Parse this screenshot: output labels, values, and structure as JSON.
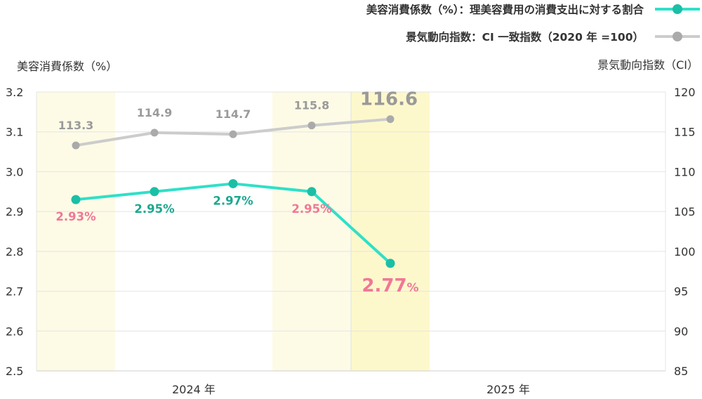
{
  "chart_data": {
    "type": "line",
    "legend": [
      {
        "name": "美容消費係数（%）：理美容費用の消費支出に対する割合",
        "color": "#2fe0c8",
        "marker": "#1bbfa5"
      },
      {
        "name": "景気動向指数：CI 一致指数（2020 年 =100）",
        "color": "#cccccc",
        "marker": "#aaaaaa"
      }
    ],
    "legend_placement": "top-right",
    "y_left": {
      "title": "美容消費係数（%）",
      "range": [
        2.5,
        3.2
      ],
      "ticks": [
        "3.2",
        "3.1",
        "3.0",
        "2.9",
        "2.8",
        "2.7",
        "2.6",
        "2.5"
      ]
    },
    "y_right": {
      "title": "景気動向指数（CI）",
      "range": [
        85,
        120
      ],
      "ticks": [
        "120",
        "115",
        "110",
        "105",
        "100",
        "95",
        "90",
        "85"
      ]
    },
    "x_categories": [
      "2024 年",
      "2025 年"
    ],
    "quarters_per_year": 4,
    "highlighted_quarters": [
      0,
      3,
      4
    ],
    "series": [
      {
        "name": "美容消費係数（%）：理美容費用の消費支出に対する割合",
        "axis": "left",
        "color": "#2fe0c8",
        "marker_color": "#1bbfa5",
        "values": [
          2.93,
          2.95,
          2.97,
          2.95,
          2.77
        ],
        "labels": [
          {
            "num": "2.93",
            "unit": "%",
            "color": "#f07896"
          },
          {
            "num": "2.95",
            "unit": "%",
            "color": "#1ba88f"
          },
          {
            "num": "2.97",
            "unit": "%",
            "color": "#1ba88f"
          },
          {
            "num": "2.95",
            "unit": "%",
            "color": "#f07896"
          },
          {
            "num": "2.77",
            "unit": "%",
            "color": "#f07896"
          }
        ]
      },
      {
        "name": "景気動向指数：CI 一致指数（2020 年 =100）",
        "axis": "right",
        "color": "#cccccc",
        "marker_color": "#aaaaaa",
        "values": [
          113.3,
          114.9,
          114.7,
          115.8,
          116.6
        ],
        "labels": [
          "113.3",
          "114.9",
          "114.7",
          "115.8",
          "116.6"
        ]
      }
    ],
    "grid": true
  }
}
